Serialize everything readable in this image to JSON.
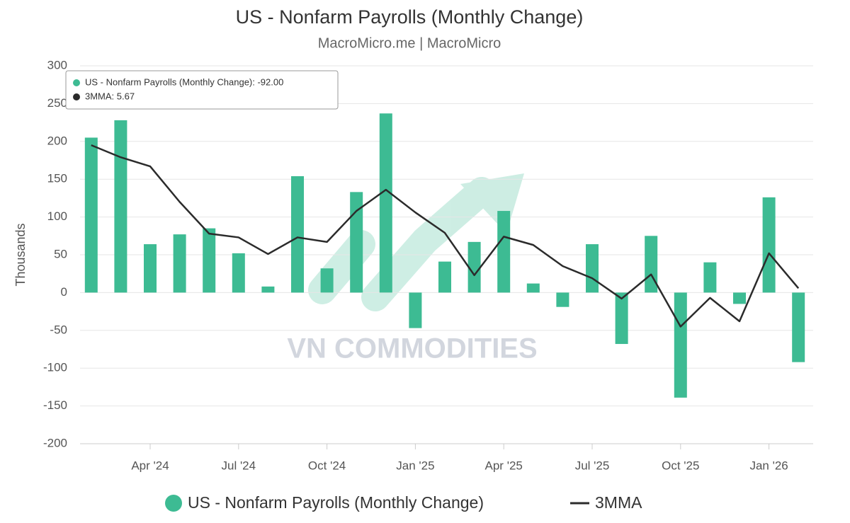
{
  "chart_data": {
    "type": "bar",
    "title": "US - Nonfarm Payrolls (Monthly Change)",
    "subtitle": "MacroMicro.me | MacroMicro",
    "y_label": "Thousands",
    "watermark": "VN COMMODITIES",
    "tooltip": [
      "US - Nonfarm Payrolls (Monthly Change): -92.00",
      "3MMA: 5.67"
    ],
    "categories": [
      null,
      null,
      "Apr '24",
      null,
      null,
      "Jul '24",
      null,
      null,
      "Oct '24",
      null,
      null,
      "Jan '25",
      null,
      null,
      "Apr '25",
      null,
      null,
      "Jul '25",
      null,
      null,
      "Oct '25",
      null,
      null,
      "Jan '26",
      null
    ],
    "series": [
      {
        "name": "US - Nonfarm Payrolls (Monthly Change)",
        "type": "bar",
        "color": "#3dbb93",
        "values": [
          205,
          228,
          64,
          77,
          85,
          52,
          8,
          154,
          32,
          133,
          237,
          -47,
          41,
          67,
          108,
          12,
          -19,
          64,
          -68,
          75,
          -139,
          40,
          -15,
          126,
          -92
        ]
      },
      {
        "name": "3MMA",
        "type": "line",
        "color": "#2b2b2b",
        "values": [
          195,
          179,
          167,
          120,
          78,
          73,
          51,
          73,
          67,
          108,
          136,
          106,
          79,
          23,
          74,
          63,
          35,
          19,
          -8,
          24,
          -45,
          -7,
          -38,
          52,
          5.67
        ]
      }
    ],
    "ylim": [
      -200,
      300
    ],
    "yticks": [
      -200,
      -150,
      -100,
      -50,
      0,
      50,
      100,
      150,
      200,
      250,
      300
    ],
    "grid": true
  }
}
